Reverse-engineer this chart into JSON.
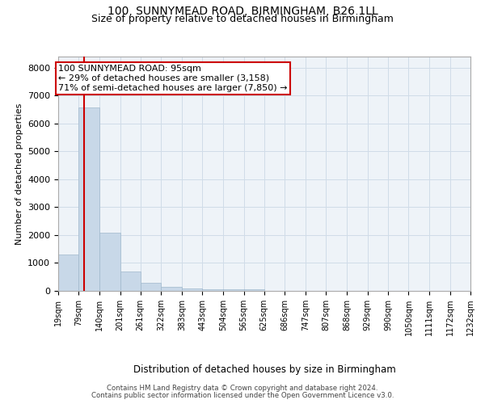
{
  "title1": "100, SUNNYMEAD ROAD, BIRMINGHAM, B26 1LL",
  "title2": "Size of property relative to detached houses in Birmingham",
  "xlabel": "Distribution of detached houses by size in Birmingham",
  "ylabel": "Number of detached properties",
  "footnote1": "Contains HM Land Registry data © Crown copyright and database right 2024.",
  "footnote2": "Contains public sector information licensed under the Open Government Licence v3.0.",
  "annotation_line1": "100 SUNNYMEAD ROAD: 95sqm",
  "annotation_line2": "← 29% of detached houses are smaller (3,158)",
  "annotation_line3": "71% of semi-detached houses are larger (7,850) →",
  "property_sqm": 95,
  "bar_edges": [
    19,
    79,
    140,
    201,
    261,
    322,
    383,
    443,
    504,
    565,
    625,
    686,
    747,
    807,
    868,
    929,
    990,
    1050,
    1111,
    1172,
    1232
  ],
  "bar_heights": [
    1300,
    6580,
    2080,
    690,
    280,
    145,
    100,
    60,
    50,
    70,
    0,
    0,
    0,
    0,
    0,
    0,
    0,
    0,
    0,
    0
  ],
  "bar_color": "#c8d8e8",
  "bar_edgecolor": "#a0b8cc",
  "vline_color": "#cc0000",
  "vline_x": 95,
  "annotation_box_edgecolor": "#cc0000",
  "annotation_box_facecolor": "#ffffff",
  "ylim": [
    0,
    8400
  ],
  "yticks": [
    0,
    1000,
    2000,
    3000,
    4000,
    5000,
    6000,
    7000,
    8000
  ],
  "grid_color": "#d0dce8",
  "bg_color": "#eef3f8",
  "title_fontsize": 10,
  "subtitle_fontsize": 9,
  "tick_label_fontsize": 7,
  "ylabel_fontsize": 8,
  "xlabel_fontsize": 8.5,
  "ytick_fontsize": 8,
  "annotation_fontsize": 8
}
